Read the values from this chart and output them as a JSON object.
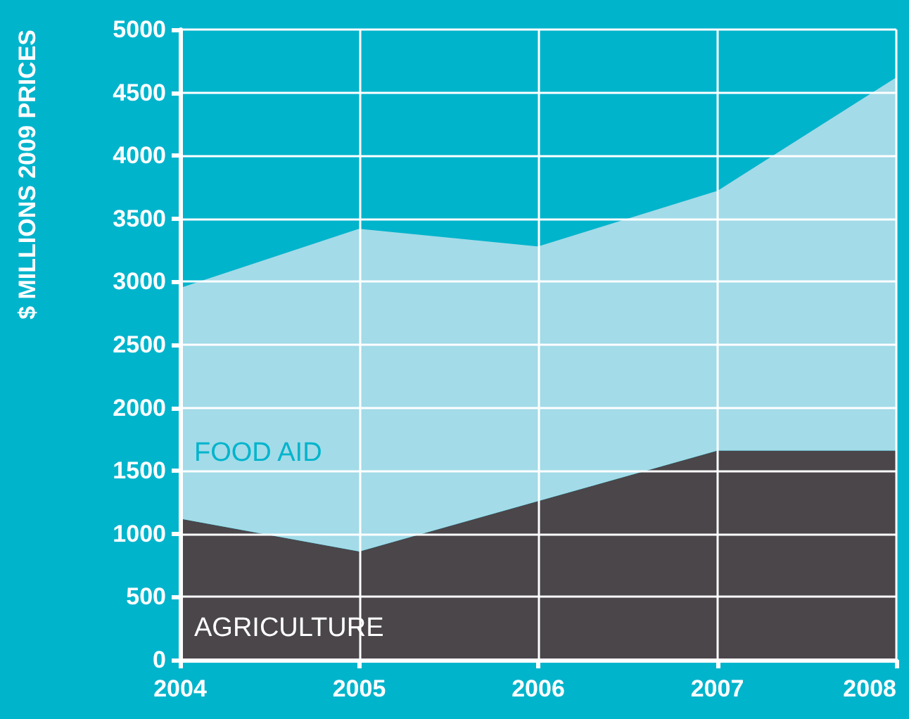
{
  "chart_data": {
    "type": "area",
    "ylabel": "$ MILLIONS 2009 PRICES",
    "stacked": true,
    "categories": [
      "2004",
      "2005",
      "2006",
      "2007",
      "2008"
    ],
    "series": [
      {
        "name": "AGRICULTURE",
        "color": "#4a464a",
        "values": [
          1120,
          860,
          1260,
          1660,
          1660
        ]
      },
      {
        "name": "FOOD AID",
        "color": "#a3dbe8",
        "values": [
          1830,
          2560,
          2020,
          2060,
          2960
        ]
      }
    ],
    "ylim": [
      0,
      5000
    ],
    "yticks": [
      0,
      500,
      1000,
      1500,
      2000,
      2500,
      3000,
      3500,
      4000,
      4500,
      5000
    ],
    "grid": true,
    "legend": false
  }
}
